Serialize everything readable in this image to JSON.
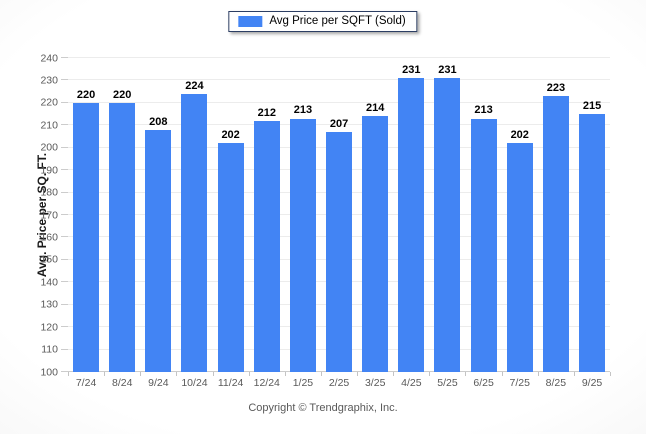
{
  "chart_data": {
    "type": "bar",
    "title": "",
    "legend_label": "Avg Price per SQFT (Sold)",
    "legend_position": "top-center",
    "categories": [
      "7/24",
      "8/24",
      "9/24",
      "10/24",
      "11/24",
      "12/24",
      "1/25",
      "2/25",
      "3/25",
      "4/25",
      "5/25",
      "6/25",
      "7/25",
      "8/25",
      "9/25"
    ],
    "values": [
      220,
      220,
      208,
      224,
      202,
      212,
      213,
      207,
      214,
      231,
      231,
      213,
      202,
      223,
      215
    ],
    "xlabel": "",
    "ylabel": "Avg. Price per SQ. FT.",
    "ylim": [
      100,
      240
    ],
    "ytick_step": 10,
    "grid": true,
    "value_labels": true,
    "bar_color": "#4284f4"
  },
  "footer": {
    "copyright": "Copyright © Trendgraphix, Inc."
  }
}
